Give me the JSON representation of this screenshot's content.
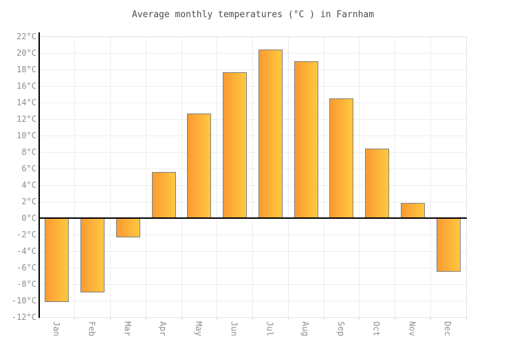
{
  "chart_data": {
    "type": "bar",
    "title": "Average monthly temperatures (°C ) in Farnham",
    "categories": [
      "Jan",
      "Feb",
      "Mar",
      "Apr",
      "May",
      "Jun",
      "Jul",
      "Aug",
      "Sep",
      "Oct",
      "Nov",
      "Dec"
    ],
    "values": [
      -10.2,
      -9,
      -2.3,
      5.6,
      12.7,
      17.7,
      20.4,
      19,
      14.5,
      8.4,
      1.8,
      -6.5
    ],
    "xlabel": "",
    "ylabel": "",
    "ylim": [
      -12,
      22
    ],
    "ytick_step": 2,
    "ytick_labels": [
      "-12°C",
      "-10°C",
      "-8°C",
      "-6°C",
      "-4°C",
      "-2°C",
      "0°C",
      "2°C",
      "4°C",
      "6°C",
      "8°C",
      "10°C",
      "12°C",
      "14°C",
      "16°C",
      "18°C",
      "20°C",
      "22°C"
    ],
    "grid": true,
    "legend_position": "none"
  },
  "style": {
    "bar_gradient_left": "#fa9a32",
    "bar_gradient_right": "#ffc840",
    "bar_border": "#7e7e7e",
    "grid_color": "#ededed",
    "plot_border_color": "#e4e4e4",
    "axis_color": "#000000",
    "tick_label_color": "#8e8e8e",
    "title_color": "#4c4c4c",
    "background": "#ffffff"
  }
}
